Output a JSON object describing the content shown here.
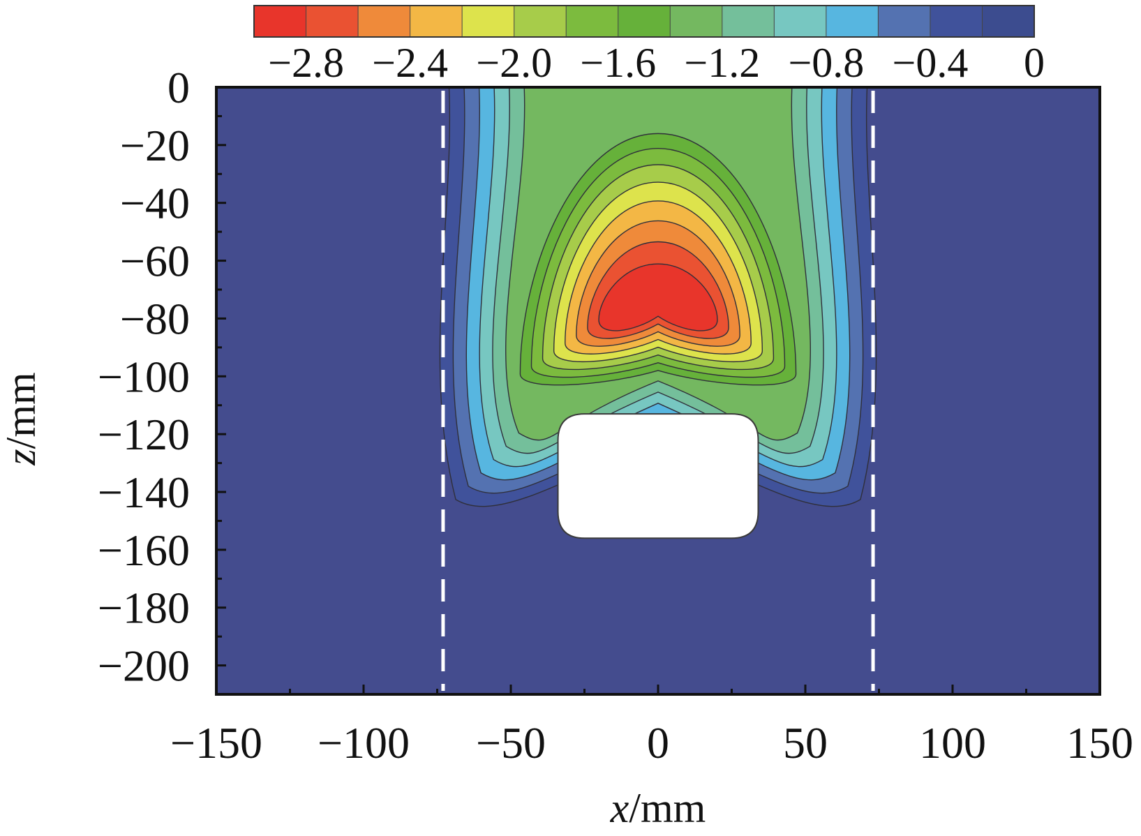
{
  "chart_data": {
    "type": "contour",
    "xlabel": {
      "var": "x",
      "unit": "/mm"
    },
    "ylabel": {
      "var": "z",
      "unit": "/mm"
    },
    "xlim": [
      -150,
      150
    ],
    "ylim": [
      -210,
      0
    ],
    "x_ticks": [
      -150,
      -100,
      -50,
      0,
      50,
      100,
      150
    ],
    "x_tick_labels": [
      "−150",
      "−100",
      "−50",
      "0",
      "50",
      "100",
      "150"
    ],
    "y_ticks": [
      0,
      -20,
      -40,
      -60,
      -80,
      -100,
      -120,
      -140,
      -160,
      -180,
      -200
    ],
    "y_tick_labels": [
      "0",
      "−20",
      "−40",
      "−60",
      "−80",
      "−100",
      "−120",
      "−140",
      "−160",
      "−180",
      "−200"
    ],
    "colorbar": {
      "placement": "top",
      "range": [
        -3.0,
        0.0
      ],
      "levels": 15,
      "colors": [
        "#e8352b",
        "#ea5232",
        "#ef8a3a",
        "#f3b745",
        "#dde34c",
        "#a7cc4a",
        "#7cbb3e",
        "#66b13a",
        "#74b860",
        "#74bf9b",
        "#77c7c1",
        "#57b6e0",
        "#5472b1",
        "#40529b",
        "#3c4c8f"
      ],
      "tick_values": [
        -2.8,
        -2.4,
        -2.0,
        -1.6,
        -1.2,
        -0.8,
        -0.4,
        0.0
      ],
      "tick_labels": [
        "−2.8",
        "−2.4",
        "−2.0",
        "−1.6",
        "−1.2",
        "−0.8",
        "−0.4",
        "0"
      ]
    },
    "field": {
      "background": "#444c8e",
      "peak_value": -2.9,
      "peak_location": [
        0,
        -78
      ]
    },
    "opening": {
      "x": [
        -34,
        34
      ],
      "z": [
        -113,
        -156
      ],
      "color": "#ffffff"
    },
    "reference_lines": [
      {
        "x": -73,
        "style": "dashed",
        "color": "#ffffff"
      },
      {
        "x": 73,
        "style": "dashed",
        "color": "#ffffff"
      }
    ]
  }
}
